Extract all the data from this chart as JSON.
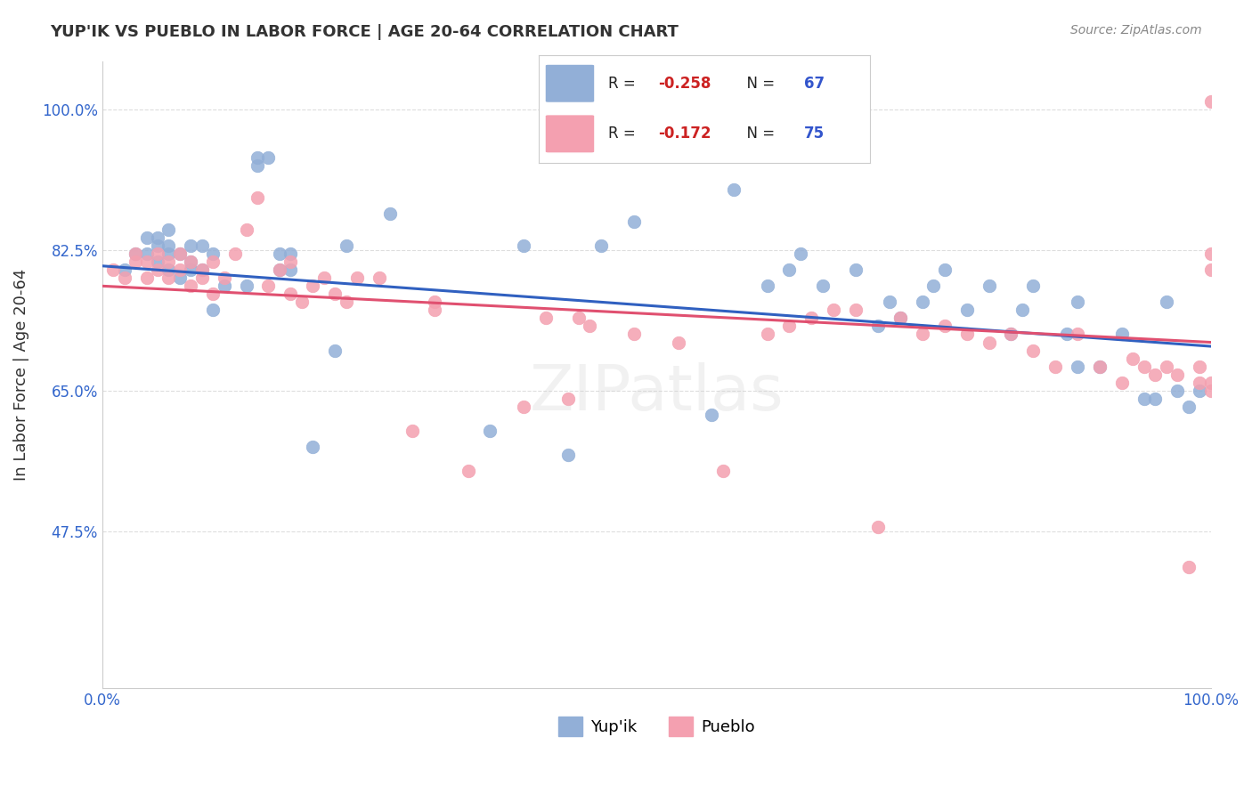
{
  "title": "YUP'IK VS PUEBLO IN LABOR FORCE | AGE 20-64 CORRELATION CHART",
  "source": "Source: ZipAtlas.com",
  "ylabel": "In Labor Force | Age 20-64",
  "xlim": [
    0.0,
    1.0
  ],
  "ylim": [
    0.28,
    1.06
  ],
  "yticks": [
    0.475,
    0.65,
    0.825,
    1.0
  ],
  "ytick_labels": [
    "47.5%",
    "65.0%",
    "82.5%",
    "100.0%"
  ],
  "xticks": [
    0.0,
    0.2,
    0.4,
    0.6,
    0.8,
    1.0
  ],
  "xtick_labels": [
    "0.0%",
    "",
    "",
    "",
    "",
    "100.0%"
  ],
  "legend_labels": [
    "Yup'ik",
    "Pueblo"
  ],
  "yupik_R": -0.258,
  "yupik_N": 67,
  "pueblo_R": -0.172,
  "pueblo_N": 75,
  "yupik_color": "#92afd7",
  "pueblo_color": "#f4a0b0",
  "yupik_line_color": "#3060c0",
  "pueblo_line_color": "#e05070",
  "marker_size": 110,
  "background_color": "#ffffff",
  "grid_color": "#dddddd",
  "yupik_x": [
    0.02,
    0.03,
    0.04,
    0.04,
    0.05,
    0.05,
    0.05,
    0.06,
    0.06,
    0.06,
    0.06,
    0.07,
    0.07,
    0.08,
    0.08,
    0.08,
    0.09,
    0.09,
    0.1,
    0.1,
    0.11,
    0.13,
    0.14,
    0.14,
    0.15,
    0.16,
    0.16,
    0.17,
    0.17,
    0.19,
    0.21,
    0.22,
    0.26,
    0.35,
    0.38,
    0.42,
    0.45,
    0.48,
    0.55,
    0.57,
    0.6,
    0.62,
    0.63,
    0.65,
    0.68,
    0.7,
    0.71,
    0.72,
    0.74,
    0.75,
    0.76,
    0.78,
    0.8,
    0.82,
    0.83,
    0.84,
    0.87,
    0.88,
    0.88,
    0.9,
    0.92,
    0.94,
    0.95,
    0.96,
    0.97,
    0.98,
    0.99
  ],
  "yupik_y": [
    0.8,
    0.82,
    0.84,
    0.82,
    0.81,
    0.83,
    0.84,
    0.82,
    0.8,
    0.83,
    0.85,
    0.79,
    0.82,
    0.8,
    0.81,
    0.83,
    0.8,
    0.83,
    0.75,
    0.82,
    0.78,
    0.78,
    0.93,
    0.94,
    0.94,
    0.82,
    0.8,
    0.82,
    0.8,
    0.58,
    0.7,
    0.83,
    0.87,
    0.6,
    0.83,
    0.57,
    0.83,
    0.86,
    0.62,
    0.9,
    0.78,
    0.8,
    0.82,
    0.78,
    0.8,
    0.73,
    0.76,
    0.74,
    0.76,
    0.78,
    0.8,
    0.75,
    0.78,
    0.72,
    0.75,
    0.78,
    0.72,
    0.68,
    0.76,
    0.68,
    0.72,
    0.64,
    0.64,
    0.76,
    0.65,
    0.63,
    0.65
  ],
  "pueblo_x": [
    0.01,
    0.02,
    0.03,
    0.03,
    0.04,
    0.04,
    0.05,
    0.05,
    0.06,
    0.06,
    0.07,
    0.07,
    0.08,
    0.08,
    0.09,
    0.09,
    0.1,
    0.1,
    0.11,
    0.12,
    0.13,
    0.14,
    0.15,
    0.16,
    0.17,
    0.17,
    0.18,
    0.19,
    0.2,
    0.21,
    0.22,
    0.23,
    0.25,
    0.28,
    0.3,
    0.3,
    0.33,
    0.38,
    0.4,
    0.42,
    0.43,
    0.44,
    0.48,
    0.52,
    0.56,
    0.6,
    0.62,
    0.64,
    0.66,
    0.68,
    0.7,
    0.72,
    0.74,
    0.76,
    0.78,
    0.8,
    0.82,
    0.84,
    0.86,
    0.88,
    0.9,
    0.92,
    0.93,
    0.94,
    0.95,
    0.96,
    0.97,
    0.98,
    0.99,
    0.99,
    1.0,
    1.0,
    1.0,
    1.0,
    1.0
  ],
  "pueblo_y": [
    0.8,
    0.79,
    0.81,
    0.82,
    0.79,
    0.81,
    0.8,
    0.82,
    0.79,
    0.81,
    0.8,
    0.82,
    0.78,
    0.81,
    0.79,
    0.8,
    0.77,
    0.81,
    0.79,
    0.82,
    0.85,
    0.89,
    0.78,
    0.8,
    0.81,
    0.77,
    0.76,
    0.78,
    0.79,
    0.77,
    0.76,
    0.79,
    0.79,
    0.6,
    0.75,
    0.76,
    0.55,
    0.63,
    0.74,
    0.64,
    0.74,
    0.73,
    0.72,
    0.71,
    0.55,
    0.72,
    0.73,
    0.74,
    0.75,
    0.75,
    0.48,
    0.74,
    0.72,
    0.73,
    0.72,
    0.71,
    0.72,
    0.7,
    0.68,
    0.72,
    0.68,
    0.66,
    0.69,
    0.68,
    0.67,
    0.68,
    0.67,
    0.43,
    0.66,
    0.68,
    1.01,
    0.82,
    0.8,
    0.66,
    0.65
  ],
  "yupik_line_y0": 0.805,
  "yupik_line_y1": 0.705,
  "pueblo_line_y0": 0.78,
  "pueblo_line_y1": 0.71
}
